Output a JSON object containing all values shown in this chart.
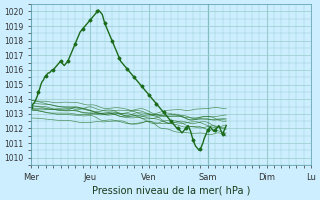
{
  "title": "Pression niveau de la mer( hPa )",
  "bg_color": "#cceeff",
  "plot_bg_color": "#cceeff",
  "grid_color": "#99cccc",
  "line_color": "#1a6b1a",
  "ylim": [
    1009.5,
    1020.5
  ],
  "yticks": [
    1010,
    1011,
    1012,
    1013,
    1014,
    1015,
    1016,
    1017,
    1018,
    1019,
    1020
  ],
  "day_labels": [
    "Mer",
    "Jeu",
    "Ven",
    "Sam",
    "Dim",
    "Lu"
  ],
  "day_positions": [
    0,
    48,
    96,
    144,
    192,
    228
  ],
  "n_hours": 240,
  "base_curve": [
    1013.5,
    1013.6,
    1013.7,
    1013.8,
    1014.0,
    1014.2,
    1014.5,
    1014.7,
    1015.0,
    1015.2,
    1015.3,
    1015.5,
    1015.6,
    1015.7,
    1015.8,
    1015.8,
    1015.9,
    1016.0,
    1016.0,
    1016.1,
    1016.2,
    1016.3,
    1016.4,
    1016.5,
    1016.6,
    1016.5,
    1016.4,
    1016.3,
    1016.4,
    1016.5,
    1016.6,
    1016.8,
    1017.0,
    1017.2,
    1017.4,
    1017.6,
    1017.8,
    1018.0,
    1018.2,
    1018.4,
    1018.6,
    1018.7,
    1018.8,
    1018.9,
    1019.0,
    1019.1,
    1019.2,
    1019.3,
    1019.4,
    1019.5,
    1019.6,
    1019.7,
    1019.8,
    1019.9,
    1020.0,
    1020.1,
    1020.0,
    1019.9,
    1019.8,
    1019.5,
    1019.2,
    1019.0,
    1018.8,
    1018.6,
    1018.4,
    1018.2,
    1018.0,
    1017.8,
    1017.6,
    1017.4,
    1017.2,
    1017.0,
    1016.8,
    1016.6,
    1016.5,
    1016.4,
    1016.3,
    1016.2,
    1016.1,
    1016.0,
    1015.9,
    1015.8,
    1015.7,
    1015.6,
    1015.5,
    1015.4,
    1015.3,
    1015.2,
    1015.1,
    1015.0,
    1014.9,
    1014.8,
    1014.7,
    1014.6,
    1014.5,
    1014.4,
    1014.3,
    1014.2,
    1014.1,
    1014.0,
    1013.9,
    1013.8,
    1013.7,
    1013.6,
    1013.5,
    1013.4,
    1013.3,
    1013.2,
    1013.1,
    1013.0,
    1012.9,
    1012.8,
    1012.7,
    1012.6,
    1012.5,
    1012.4,
    1012.3,
    1012.2,
    1012.1,
    1012.0,
    1012.0,
    1011.9,
    1011.8,
    1011.7,
    1011.8,
    1011.9,
    1012.0,
    1012.1,
    1012.2,
    1012.0,
    1011.8,
    1011.5,
    1011.2,
    1011.0,
    1010.8,
    1010.7,
    1010.6,
    1010.5,
    1010.6,
    1010.8,
    1011.0,
    1011.3,
    1011.5,
    1011.7,
    1011.9,
    1012.0,
    1012.1,
    1012.0,
    1011.9,
    1011.8,
    1011.9,
    1012.0,
    1012.1,
    1012.2,
    1012.0,
    1011.8,
    1011.6,
    1011.8,
    1012.0,
    1012.2
  ]
}
